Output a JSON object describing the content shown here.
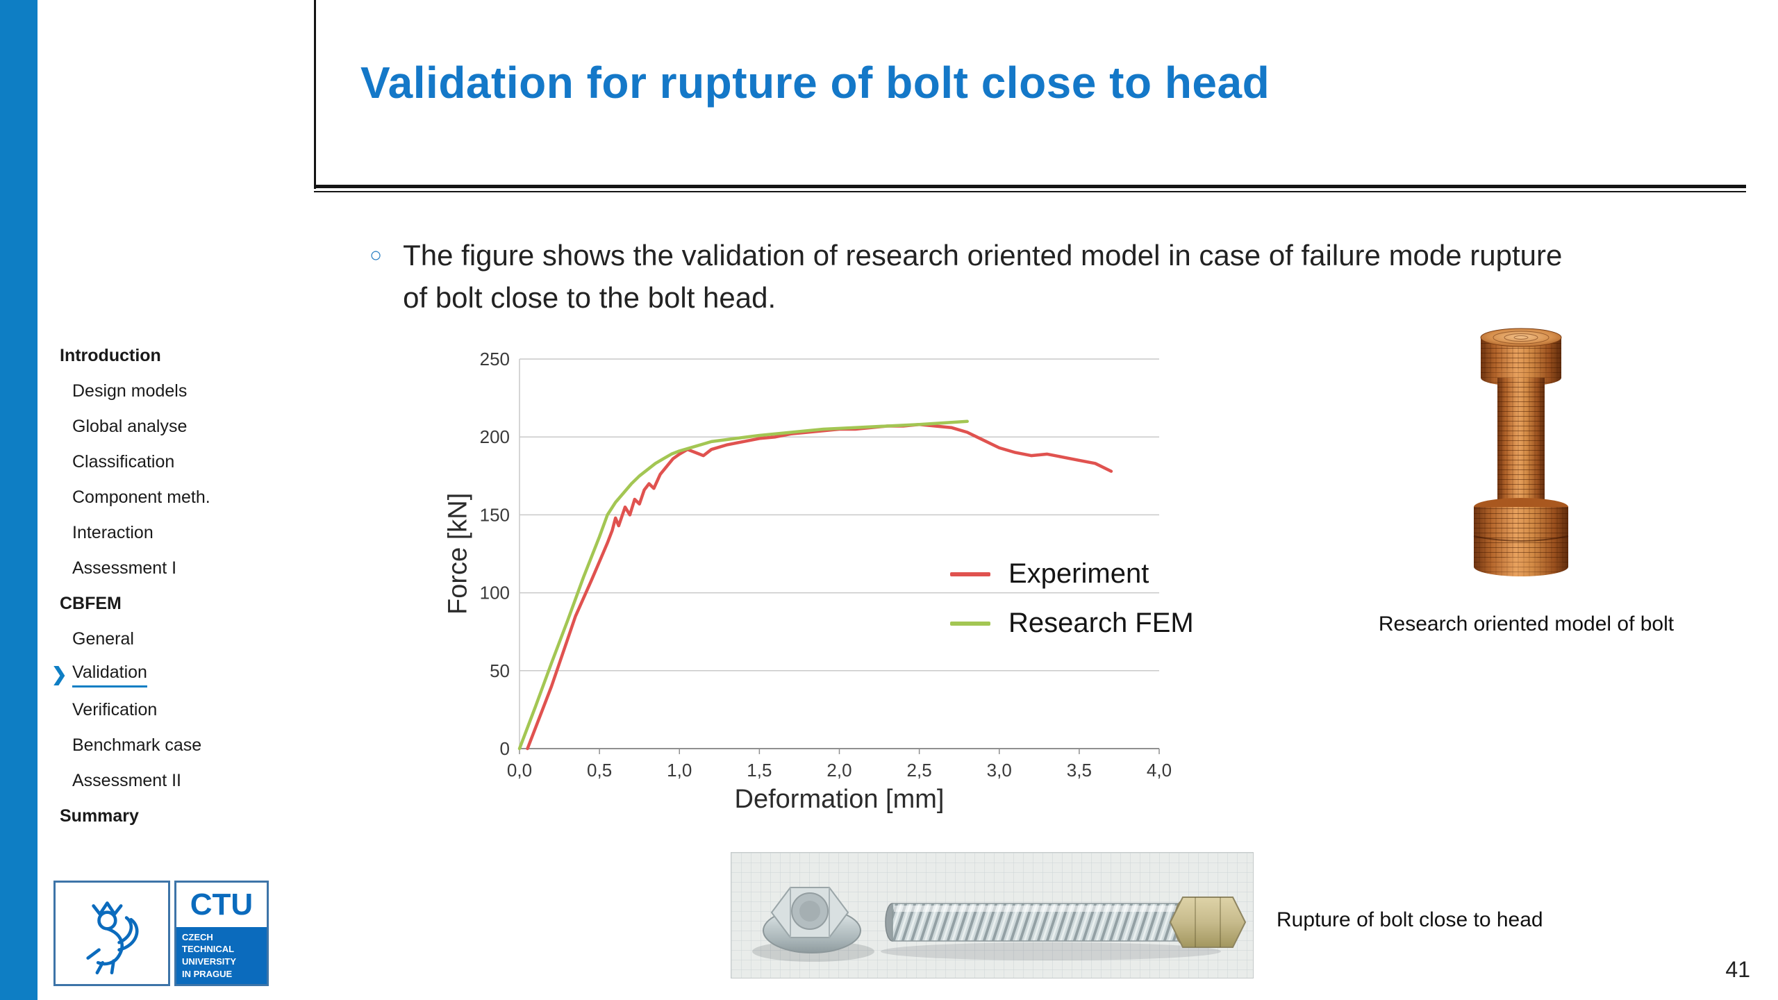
{
  "slide": {
    "title": "Validation for rupture of bolt close to head",
    "bullet_text": "The figure shows the validation of research oriented model in case of failure mode rupture of bolt close to the bolt head.",
    "page_number": "41"
  },
  "sidebar": {
    "items": [
      {
        "label": "Introduction",
        "style": "section",
        "active": false
      },
      {
        "label": "Design models",
        "style": "sub",
        "active": false
      },
      {
        "label": "Global analyse",
        "style": "sub",
        "active": false
      },
      {
        "label": "Classification",
        "style": "sub",
        "active": false
      },
      {
        "label": "Component meth.",
        "style": "sub",
        "active": false
      },
      {
        "label": "Interaction",
        "style": "sub",
        "active": false
      },
      {
        "label": "Assessment I",
        "style": "sub",
        "active": false
      },
      {
        "label": "CBFEM",
        "style": "section",
        "active": false
      },
      {
        "label": "General",
        "style": "sub",
        "active": false
      },
      {
        "label": "Validation",
        "style": "sub",
        "active": true
      },
      {
        "label": "Verification",
        "style": "sub",
        "active": false
      },
      {
        "label": "Benchmark case",
        "style": "sub",
        "active": false
      },
      {
        "label": "Assessment II",
        "style": "sub",
        "active": false
      },
      {
        "label": "Summary",
        "style": "section",
        "active": false
      }
    ]
  },
  "figures": {
    "bolt_model_caption": "Research oriented model of bolt",
    "rupture_caption": "Rupture of bolt close to head"
  },
  "logo": {
    "acronym": "CTU",
    "name_lines": [
      "CZECH TECHNICAL",
      "UNIVERSITY",
      "IN PRAGUE"
    ]
  },
  "chart_data": {
    "type": "line",
    "title": "",
    "xlabel": "Deformation [mm]",
    "ylabel": "Force [kN]",
    "xlim": [
      0.0,
      4.0
    ],
    "ylim": [
      0,
      250
    ],
    "x_tick_values": [
      0,
      0.5,
      1.0,
      1.5,
      2.0,
      2.5,
      3.0,
      3.5,
      4.0
    ],
    "x_tick_labels": [
      "0,0",
      "0,5",
      "1,0",
      "1,5",
      "2,0",
      "2,5",
      "3,0",
      "3,5",
      "4,0"
    ],
    "y_tick_values": [
      0,
      50,
      100,
      150,
      200,
      250
    ],
    "grid": "horizontal",
    "legend_position": "inside right",
    "series": [
      {
        "name": "Experiment",
        "color": "#e0524f",
        "points": [
          [
            0.05,
            0
          ],
          [
            0.2,
            40
          ],
          [
            0.35,
            85
          ],
          [
            0.45,
            108
          ],
          [
            0.5,
            120
          ],
          [
            0.55,
            132
          ],
          [
            0.58,
            140
          ],
          [
            0.6,
            148
          ],
          [
            0.62,
            143
          ],
          [
            0.66,
            155
          ],
          [
            0.69,
            150
          ],
          [
            0.72,
            160
          ],
          [
            0.75,
            157
          ],
          [
            0.78,
            166
          ],
          [
            0.81,
            170
          ],
          [
            0.84,
            167
          ],
          [
            0.88,
            176
          ],
          [
            0.92,
            181
          ],
          [
            0.96,
            186
          ],
          [
            1.0,
            189
          ],
          [
            1.05,
            192
          ],
          [
            1.1,
            190
          ],
          [
            1.15,
            188
          ],
          [
            1.2,
            192
          ],
          [
            1.3,
            195
          ],
          [
            1.4,
            197
          ],
          [
            1.5,
            199
          ],
          [
            1.6,
            200
          ],
          [
            1.7,
            202
          ],
          [
            1.8,
            203
          ],
          [
            1.9,
            204
          ],
          [
            2.0,
            205
          ],
          [
            2.1,
            205
          ],
          [
            2.2,
            206
          ],
          [
            2.3,
            207
          ],
          [
            2.4,
            207
          ],
          [
            2.5,
            208
          ],
          [
            2.6,
            207
          ],
          [
            2.7,
            206
          ],
          [
            2.8,
            203
          ],
          [
            2.9,
            198
          ],
          [
            3.0,
            193
          ],
          [
            3.1,
            190
          ],
          [
            3.2,
            188
          ],
          [
            3.3,
            189
          ],
          [
            3.4,
            187
          ],
          [
            3.5,
            185
          ],
          [
            3.6,
            183
          ],
          [
            3.7,
            178
          ]
        ]
      },
      {
        "name": "Research FEM",
        "color": "#a3c653",
        "points": [
          [
            0.0,
            0
          ],
          [
            0.1,
            27
          ],
          [
            0.2,
            55
          ],
          [
            0.3,
            82
          ],
          [
            0.4,
            110
          ],
          [
            0.5,
            136
          ],
          [
            0.55,
            150
          ],
          [
            0.6,
            158
          ],
          [
            0.65,
            164
          ],
          [
            0.7,
            170
          ],
          [
            0.75,
            175
          ],
          [
            0.8,
            179
          ],
          [
            0.85,
            183
          ],
          [
            0.9,
            186
          ],
          [
            0.95,
            189
          ],
          [
            1.0,
            191
          ],
          [
            1.1,
            194
          ],
          [
            1.2,
            197
          ],
          [
            1.35,
            199
          ],
          [
            1.5,
            201
          ],
          [
            1.7,
            203
          ],
          [
            1.9,
            205
          ],
          [
            2.1,
            206
          ],
          [
            2.3,
            207
          ],
          [
            2.5,
            208
          ],
          [
            2.65,
            209
          ],
          [
            2.8,
            210
          ]
        ]
      }
    ]
  }
}
